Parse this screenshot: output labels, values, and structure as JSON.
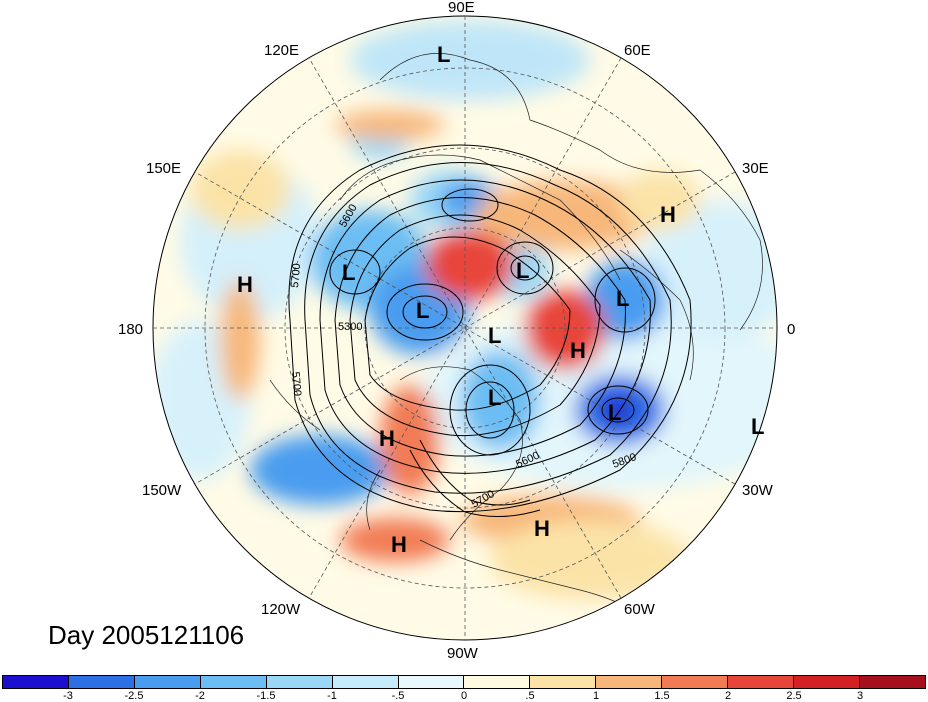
{
  "title": "Day 2005121106",
  "longitude_labels": [
    "90E",
    "60E",
    "30E",
    "0",
    "30W",
    "60W",
    "90W",
    "120W",
    "150W",
    "180",
    "150E",
    "120E"
  ],
  "pressure_centers": [
    {
      "label": "L"
    },
    {
      "label": "H"
    },
    {
      "label": "L"
    },
    {
      "label": "L"
    },
    {
      "label": "L"
    },
    {
      "label": "L"
    },
    {
      "label": "H"
    },
    {
      "label": "L"
    },
    {
      "label": "L"
    },
    {
      "label": "H"
    },
    {
      "label": "L"
    },
    {
      "label": "H"
    },
    {
      "label": "H"
    },
    {
      "label": "H"
    }
  ],
  "contour_labels": [
    "5600",
    "5700",
    "5300",
    "5700",
    "5600",
    "5800",
    "5700"
  ],
  "colorbar": {
    "ticks": [
      "-3",
      "-2.5",
      "-2",
      "-1.5",
      "-1",
      "-.5",
      "0",
      ".5",
      "1",
      "1.5",
      "2",
      "2.5",
      "3"
    ],
    "colors": [
      "#1c0fd0",
      "#2f6fe6",
      "#4a9cef",
      "#6cbdf3",
      "#9ad7f7",
      "#c6ecfb",
      "#e8f8fd",
      "#fffae0",
      "#fbe3a8",
      "#f7b77a",
      "#f27b55",
      "#e8453a",
      "#d32123",
      "#a50f1e"
    ]
  }
}
